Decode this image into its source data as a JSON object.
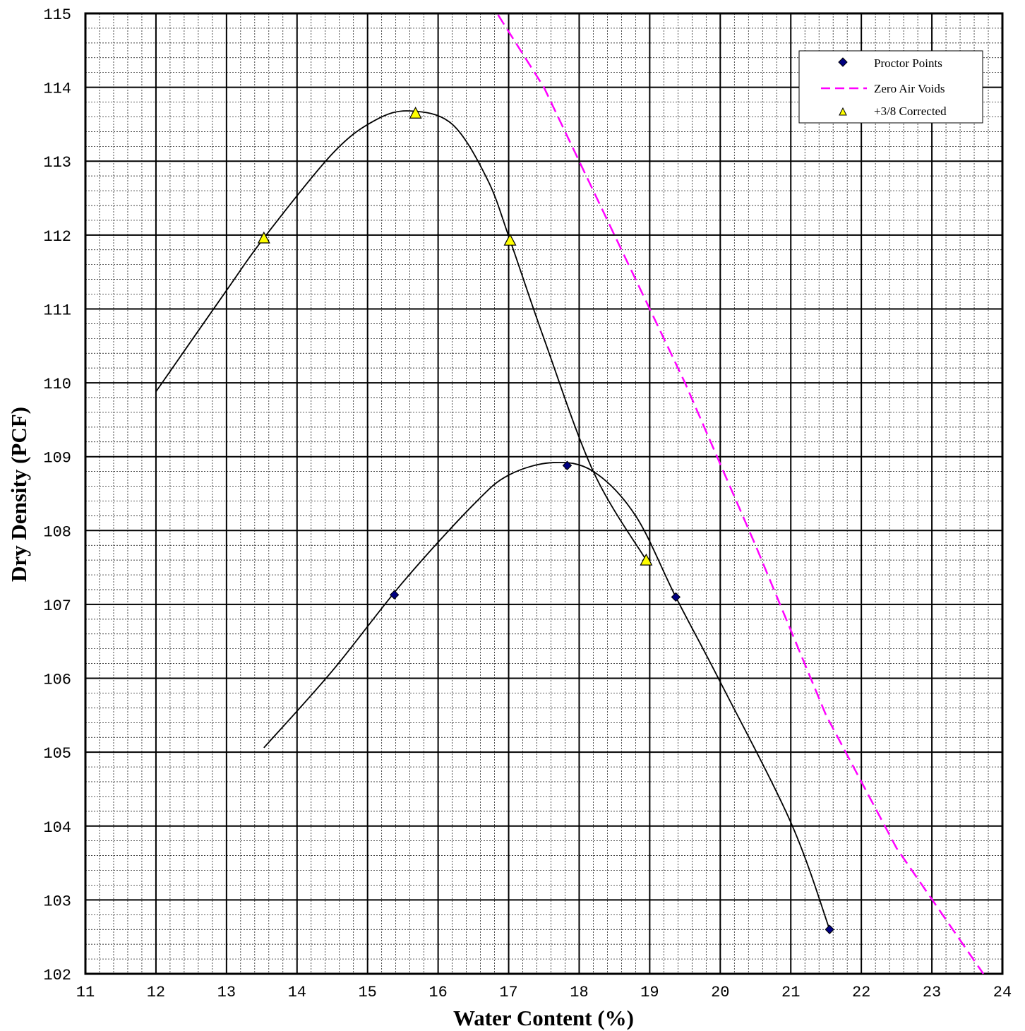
{
  "chart_data": {
    "type": "scatter",
    "xlabel": "Water Content (%)",
    "ylabel": "Dry Density (PCF)",
    "xlim": [
      11,
      24
    ],
    "ylim": [
      102,
      115
    ],
    "xticks": [
      "11",
      "12",
      "13",
      "14",
      "15",
      "16",
      "17",
      "18",
      "19",
      "20",
      "21",
      "22",
      "23",
      "24"
    ],
    "yticks": [
      "102",
      "103",
      "104",
      "105",
      "106",
      "107",
      "108",
      "109",
      "110",
      "111",
      "112",
      "113",
      "114",
      "115"
    ],
    "grid": {
      "major": true,
      "minor": true,
      "minor_per_major": 5
    },
    "legend_position": "top-right",
    "series": [
      {
        "name": "Proctor Points",
        "marker": "diamond",
        "color": "#000080",
        "points": [
          [
            15.38,
            107.13
          ],
          [
            17.83,
            108.88
          ],
          [
            19.37,
            107.1
          ],
          [
            21.55,
            102.6
          ]
        ],
        "fit_curve": [
          [
            13.53,
            105.06
          ],
          [
            14.5,
            106.1
          ],
          [
            15.5,
            107.3
          ],
          [
            16.5,
            108.35
          ],
          [
            17.0,
            108.75
          ],
          [
            17.63,
            108.92
          ],
          [
            18.2,
            108.8
          ],
          [
            18.8,
            108.2
          ],
          [
            19.37,
            107.1
          ],
          [
            20.0,
            105.95
          ],
          [
            21.0,
            104.05
          ],
          [
            21.55,
            102.6
          ]
        ]
      },
      {
        "name": "Zero Air Voids",
        "line": "dashed",
        "color": "#FF00FF",
        "points": [
          [
            16.85,
            114.98
          ],
          [
            17.5,
            114.0
          ],
          [
            18.5,
            112.0
          ],
          [
            19.5,
            110.0
          ],
          [
            20.5,
            107.8
          ],
          [
            21.5,
            105.5
          ],
          [
            22.5,
            103.7
          ],
          [
            23.73,
            102.0
          ]
        ]
      },
      {
        "name": "+3/8 Corrected",
        "marker": "triangle",
        "color": "#FFFF00",
        "points": [
          [
            13.53,
            111.96
          ],
          [
            15.68,
            113.65
          ],
          [
            17.02,
            111.93
          ],
          [
            18.95,
            107.6
          ]
        ],
        "fit_curve": [
          [
            12.0,
            109.88
          ],
          [
            13.0,
            111.25
          ],
          [
            13.53,
            111.96
          ],
          [
            14.5,
            113.1
          ],
          [
            15.1,
            113.55
          ],
          [
            15.6,
            113.68
          ],
          [
            16.2,
            113.5
          ],
          [
            16.7,
            112.75
          ],
          [
            17.02,
            111.93
          ],
          [
            17.5,
            110.6
          ],
          [
            18.2,
            108.8
          ],
          [
            18.95,
            107.6
          ]
        ]
      }
    ]
  }
}
